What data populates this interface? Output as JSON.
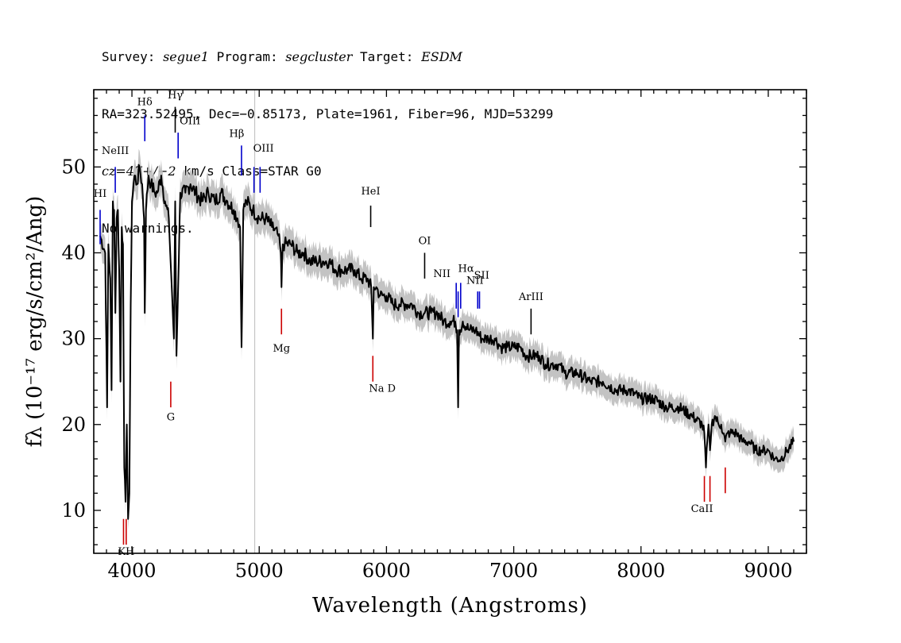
{
  "header": {
    "survey_label": "Survey:",
    "survey": "segue1",
    "program_label": "Program:",
    "program": "segcluster",
    "target_label": "Target:",
    "target": "ESDM",
    "line2": "RA=323.52495, Dec=−0.85173, Plate=1961, Fiber=96, MJD=53299",
    "cz": "cz=47+/−2",
    "cz_rest": " km/s Class=STAR G0",
    "warnings": "No warnings."
  },
  "chart_data": {
    "type": "line",
    "title": "",
    "xlabel": "Wavelength (Angstroms)",
    "ylabel": "fλ (10⁻¹⁷ erg/s/cm²/Ang)",
    "xlim": [
      3700,
      9300
    ],
    "ylim": [
      5,
      59
    ],
    "xticks": [
      4000,
      5000,
      6000,
      7000,
      8000,
      9000
    ],
    "yticks": [
      10,
      20,
      30,
      40,
      50
    ],
    "grid": false,
    "colors": {
      "flux": "#000000",
      "error_band": "#bdbdbd",
      "emission_marker": "#0000cc",
      "absorption_marker": "#cc0000",
      "other_marker": "#000000",
      "vline": "#bbbbbb"
    },
    "vline_x": 4965,
    "series": [
      {
        "role": "flux",
        "x": [
          3750,
          3790,
          3805,
          3815,
          3830,
          3840,
          3850,
          3860,
          3870,
          3880,
          3890,
          3900,
          3910,
          3920,
          3930,
          3940,
          3950,
          3960,
          3970,
          3980,
          3990,
          4000,
          4020,
          4040,
          4060,
          4080,
          4095,
          4101,
          4110,
          4130,
          4150,
          4180,
          4200,
          4230,
          4260,
          4290,
          4310,
          4330,
          4340,
          4350,
          4380,
          4420,
          4460,
          4500,
          4550,
          4600,
          4650,
          4700,
          4750,
          4800,
          4830,
          4850,
          4861,
          4875,
          4900,
          4950,
          5000,
          5050,
          5100,
          5150,
          5170,
          5175,
          5185,
          5200,
          5250,
          5300,
          5350,
          5400,
          5450,
          5500,
          5550,
          5600,
          5650,
          5700,
          5750,
          5800,
          5850,
          5880,
          5893,
          5900,
          5920,
          5950,
          6000,
          6050,
          6100,
          6150,
          6200,
          6250,
          6300,
          6350,
          6400,
          6450,
          6500,
          6540,
          6555,
          6563,
          6570,
          6580,
          6600,
          6650,
          6700,
          6750,
          6800,
          6850,
          6900,
          6950,
          7000,
          7050,
          7100,
          7150,
          7200,
          7250,
          7300,
          7350,
          7400,
          7500,
          7600,
          7700,
          7800,
          7900,
          8000,
          8100,
          8200,
          8300,
          8400,
          8480,
          8498,
          8510,
          8530,
          8542,
          8555,
          8580,
          8610,
          8630,
          8662,
          8680,
          8700,
          8750,
          8800,
          8850,
          8900,
          8950,
          9000,
          9050,
          9100,
          9150,
          9200
        ],
        "y": [
          42,
          40,
          22,
          41,
          37,
          24,
          46,
          45,
          33,
          44,
          45,
          38,
          25,
          43,
          41,
          15,
          11,
          20,
          9,
          12,
          34,
          46,
          49,
          48,
          50,
          48,
          44,
          33,
          45,
          49,
          48,
          47,
          47,
          49,
          46,
          44,
          37,
          30,
          46,
          28,
          47,
          47,
          48,
          47,
          46,
          47,
          46,
          47,
          46,
          45,
          44,
          43,
          29,
          45,
          46,
          45,
          44,
          44,
          43,
          42,
          40,
          36,
          41,
          41,
          41,
          40,
          40,
          39,
          39,
          39,
          39,
          38,
          38,
          38,
          38,
          37,
          37,
          36,
          30,
          36,
          36,
          35,
          35,
          34,
          34,
          34,
          34,
          33,
          33,
          33,
          33,
          32,
          32,
          32,
          31,
          22,
          31,
          31,
          32,
          31,
          31,
          30,
          30,
          30,
          29,
          29,
          29,
          29,
          28,
          28,
          28,
          27,
          27,
          27,
          26,
          26,
          25,
          25,
          24,
          24,
          23,
          23,
          22,
          22,
          21,
          20,
          19,
          15,
          20,
          17,
          20,
          21,
          20,
          20,
          18,
          19,
          19,
          19,
          18,
          18,
          17,
          17,
          17,
          16,
          16,
          17,
          18
        ]
      }
    ],
    "line_markers": [
      {
        "label": "HI",
        "x": 3750,
        "y1": 41,
        "y2": 45,
        "color": "emission_marker",
        "label_y": 46.5,
        "label_pos": "top"
      },
      {
        "label": "NeIII",
        "x": 3869,
        "y1": 47,
        "y2": 50,
        "color": "emission_marker",
        "label_y": 51.5,
        "label_pos": "top"
      },
      {
        "label": "Hδ",
        "x": 4101,
        "y1": 53,
        "y2": 56,
        "color": "emission_marker",
        "label_y": 57.2,
        "label_pos": "top"
      },
      {
        "label": "Hγ",
        "x": 4340,
        "y1": 54,
        "y2": 57,
        "color": "other_marker",
        "label_y": 58.0,
        "label_pos": "top"
      },
      {
        "label": "OIII",
        "x": 4363,
        "y1": 51,
        "y2": 54,
        "color": "emission_marker",
        "label_y": 55.0,
        "label_pos": "top",
        "label_dx": 15
      },
      {
        "label": "Hβ",
        "x": 4861,
        "y1": 49,
        "y2": 52.5,
        "color": "emission_marker",
        "label_y": 53.5,
        "label_pos": "top",
        "label_dx": -6
      },
      {
        "label": "OIII",
        "x": 4959,
        "y1": 47,
        "y2": 50,
        "color": "emission_marker",
        "label_y": 51.8,
        "label_pos": "top",
        "label_dx": 12
      },
      {
        "label": "",
        "x": 5007,
        "y1": 47,
        "y2": 50,
        "color": "emission_marker"
      },
      {
        "label": "HeI",
        "x": 5876,
        "y1": 43,
        "y2": 45.5,
        "color": "other_marker",
        "label_y": 46.8,
        "label_pos": "top"
      },
      {
        "label": "OI",
        "x": 6300,
        "y1": 37,
        "y2": 40,
        "color": "other_marker",
        "label_y": 41.0,
        "label_pos": "top"
      },
      {
        "label": "NII",
        "x": 6548,
        "y1": 33.5,
        "y2": 36.5,
        "color": "emission_marker",
        "label_y": 37.2,
        "label_pos": "top",
        "label_dx": -18
      },
      {
        "label": "Hα",
        "x": 6563,
        "y1": 32.5,
        "y2": 35.5,
        "color": "emission_marker",
        "label_y": 37.8,
        "label_pos": "top",
        "label_dx": 10
      },
      {
        "label": "NII",
        "x": 6583,
        "y1": 33.5,
        "y2": 36.5,
        "color": "emission_marker",
        "label_y": 36.4,
        "label_pos": "top",
        "label_dx": 18
      },
      {
        "label": "SII",
        "x": 6717,
        "y1": 33.5,
        "y2": 35.5,
        "color": "emission_marker",
        "label_y": 37.0,
        "label_pos": "top",
        "label_dx": 5
      },
      {
        "label": "",
        "x": 6731,
        "y1": 33.5,
        "y2": 35.5,
        "color": "emission_marker"
      },
      {
        "label": "ArIII",
        "x": 7136,
        "y1": 30.5,
        "y2": 33.5,
        "color": "other_marker",
        "label_y": 34.5,
        "label_pos": "top"
      },
      {
        "label": "Mg",
        "x": 5175,
        "y1": 30.5,
        "y2": 33.5,
        "color": "absorption_marker",
        "label_y": 28.5,
        "label_pos": "bottom"
      },
      {
        "label": "G",
        "x": 4305,
        "y1": 22,
        "y2": 25,
        "color": "absorption_marker",
        "label_y": 20.5,
        "label_pos": "bottom"
      },
      {
        "label": "Na D",
        "x": 5893,
        "y1": 25,
        "y2": 28,
        "color": "absorption_marker",
        "label_y": 23.8,
        "label_pos": "bottom",
        "label_dx": 12
      },
      {
        "label": "KH",
        "x": 3955,
        "y1": 6,
        "y2": 9,
        "color": "absorption_marker",
        "label_y": 4.8,
        "label_pos": "bottom",
        "label_dx": 0
      },
      {
        "label": "",
        "x": 3934,
        "y1": 6,
        "y2": 9,
        "color": "absorption_marker"
      },
      {
        "label": "CaII",
        "x": 8542,
        "y1": 11,
        "y2": 14,
        "color": "absorption_marker",
        "label_y": 9.8,
        "label_pos": "bottom",
        "label_dx": -10
      },
      {
        "label": "",
        "x": 8498,
        "y1": 11,
        "y2": 14,
        "color": "absorption_marker"
      },
      {
        "label": "",
        "x": 8662,
        "y1": 12,
        "y2": 15,
        "color": "absorption_marker"
      }
    ]
  }
}
